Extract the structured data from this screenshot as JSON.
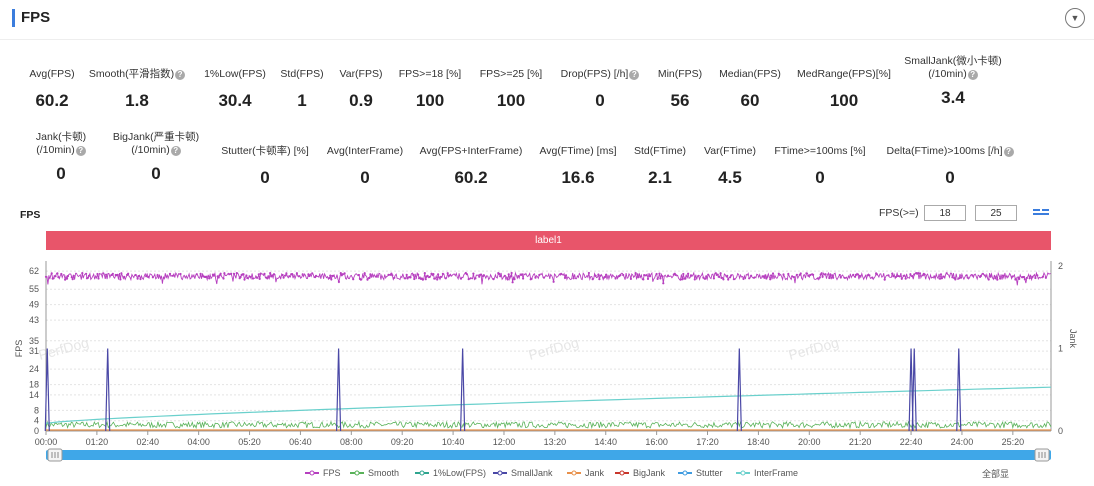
{
  "panel": {
    "title": "FPS",
    "collapse_icon": "chevron-down-icon"
  },
  "metrics_row1": [
    {
      "label": "Avg(FPS)",
      "value": "60.2",
      "help": false
    },
    {
      "label": "Smooth(平滑指数)",
      "value": "1.8",
      "help": true
    },
    {
      "label": "1%Low(FPS)",
      "value": "30.4",
      "help": false
    },
    {
      "label": "Std(FPS)",
      "value": "1",
      "help": false
    },
    {
      "label": "Var(FPS)",
      "value": "0.9",
      "help": false
    },
    {
      "label": "FPS>=18 [%]",
      "value": "100",
      "help": false
    },
    {
      "label": "FPS>=25 [%]",
      "value": "100",
      "help": false
    },
    {
      "label": "Drop(FPS) [/h]",
      "value": "0",
      "help": true
    },
    {
      "label": "Min(FPS)",
      "value": "56",
      "help": false
    },
    {
      "label": "Median(FPS)",
      "value": "60",
      "help": false
    },
    {
      "label": "MedRange(FPS)[%]",
      "value": "100",
      "help": false
    },
    {
      "label": "SmallJank(微小卡顿)",
      "label2": "(/10min)",
      "value": "3.4",
      "help": true
    }
  ],
  "metrics_row2": [
    {
      "label": "Jank(卡顿)",
      "label2": "(/10min)",
      "value": "0",
      "help": true
    },
    {
      "label": "BigJank(严重卡顿)",
      "label2": "(/10min)",
      "value": "0",
      "help": true
    },
    {
      "label": "Stutter(卡顿率) [%]",
      "value": "0",
      "help": false
    },
    {
      "label": "Avg(InterFrame)",
      "value": "0",
      "help": false
    },
    {
      "label": "Avg(FPS+InterFrame)",
      "value": "60.2",
      "help": false
    },
    {
      "label": "Avg(FTime) [ms]",
      "value": "16.6",
      "help": false
    },
    {
      "label": "Std(FTime)",
      "value": "2.1",
      "help": false
    },
    {
      "label": "Var(FTime)",
      "value": "4.5",
      "help": false
    },
    {
      "label": "FTime>=100ms [%]",
      "value": "0",
      "help": false
    },
    {
      "label": "Delta(FTime)>100ms [/h]",
      "value": "0",
      "help": true
    }
  ],
  "chart_header": {
    "title": "FPS",
    "threshold_label": "FPS(>=)",
    "threshold_1": "18",
    "threshold_2": "25"
  },
  "label_bar": "label1",
  "watermark": "PerfDog",
  "chart_data": {
    "type": "line",
    "ylabel_left": "FPS",
    "ylabel_right": "Jank",
    "y_ticks_left": [
      "0",
      "4",
      "8",
      "14",
      "18",
      "24",
      "31",
      "35",
      "43",
      "49",
      "55",
      "62"
    ],
    "y_ticks_right": [
      "0",
      "1",
      "2"
    ],
    "x_ticks": [
      "00:00",
      "01:20",
      "02:40",
      "04:00",
      "05:20",
      "06:40",
      "08:00",
      "09:20",
      "10:40",
      "12:00",
      "13:20",
      "14:40",
      "16:00",
      "17:20",
      "18:40",
      "20:00",
      "21:20",
      "22:40",
      "24:00",
      "25:20"
    ],
    "xlim": [
      0,
      1580
    ],
    "ylim_left": [
      0,
      64
    ],
    "ylim_right": [
      0,
      2
    ],
    "series": [
      {
        "name": "FPS",
        "color": "#b63fbf",
        "approx_value": 60.2,
        "min": 56
      },
      {
        "name": "Smooth",
        "color": "#59b259",
        "approx_value": 1.8
      },
      {
        "name": "1%Low(FPS)",
        "color": "#2fa58f"
      },
      {
        "name": "SmallJank",
        "color": "#4a48a6",
        "events_seconds": [
          2,
          97,
          460,
          655,
          1090,
          1360,
          1365,
          1435
        ]
      },
      {
        "name": "Jank",
        "color": "#e8904a"
      },
      {
        "name": "BigJank",
        "color": "#c9372c"
      },
      {
        "name": "Stutter",
        "color": "#3f9be0"
      },
      {
        "name": "InterFrame",
        "color": "#6ad0cc",
        "start": 3,
        "end": 17
      }
    ],
    "legend_position": "bottom"
  },
  "zoom_label": "全部显"
}
